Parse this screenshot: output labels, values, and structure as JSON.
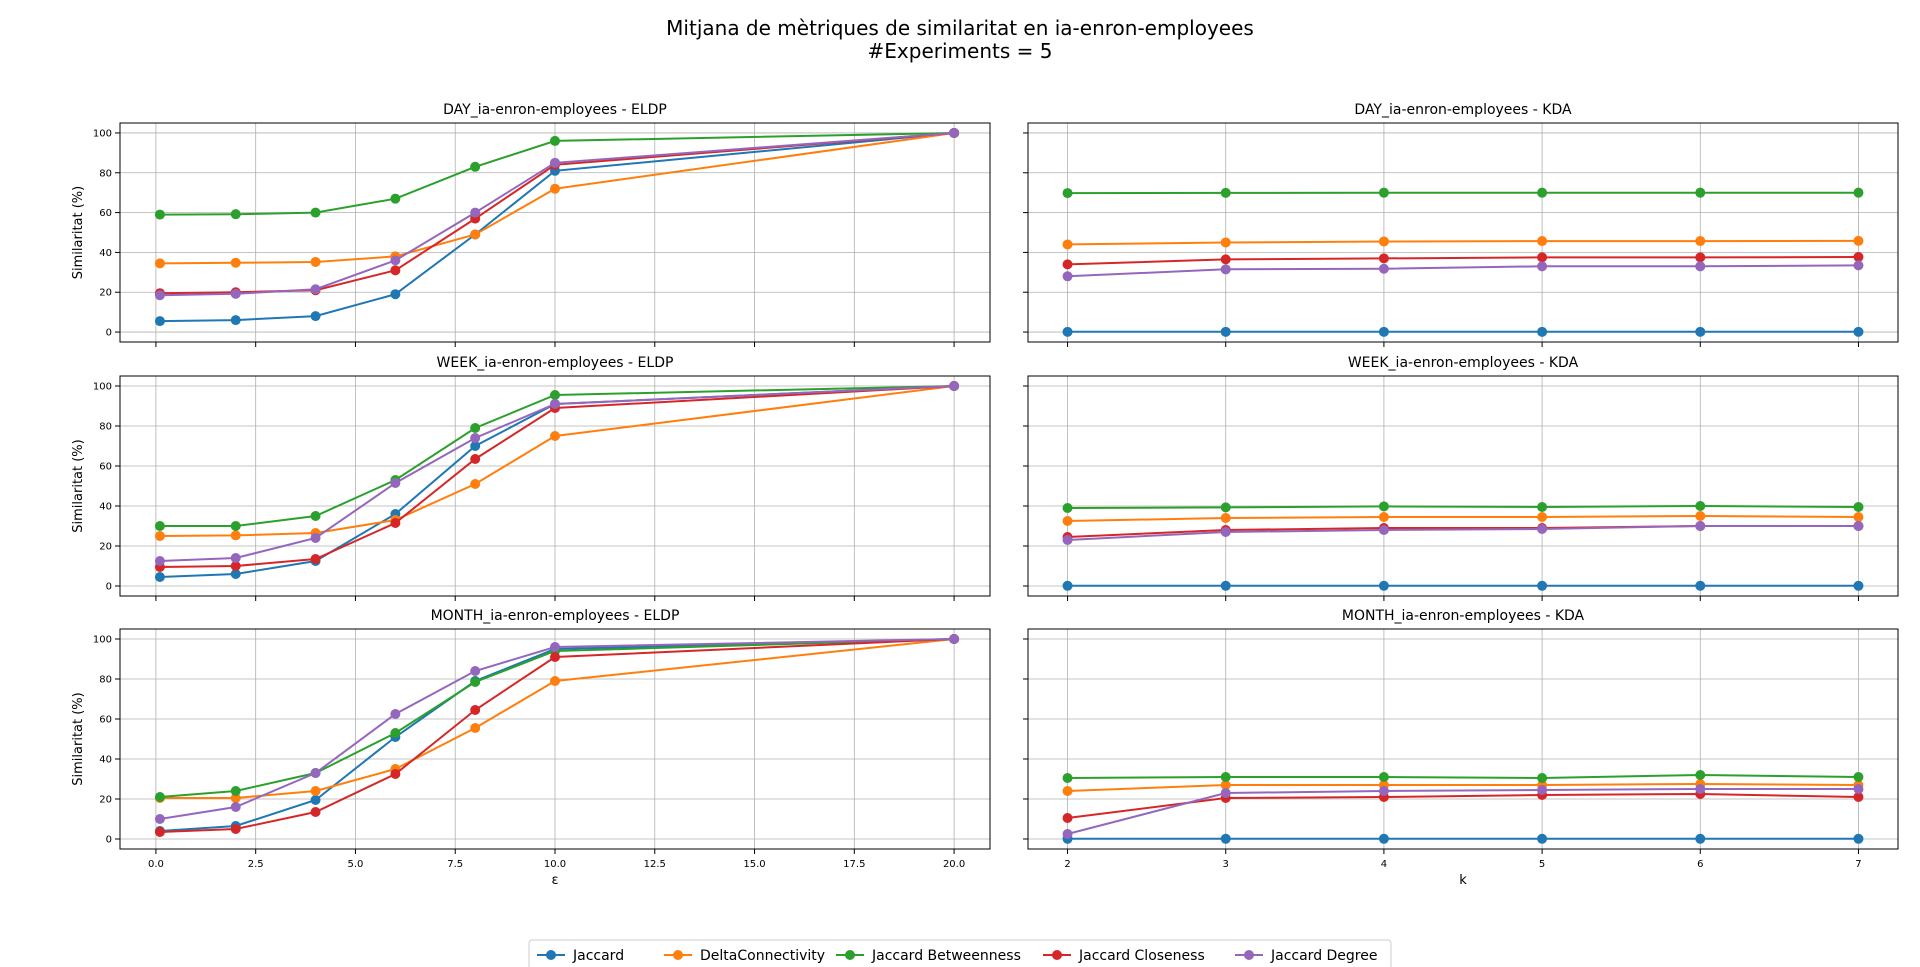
{
  "figure": {
    "title_line1": "Mitjana de mètriques de similaritat en ia-enron-employees",
    "title_line2": "#Experiments = 5"
  },
  "colors": {
    "Jaccard": "#1f77b4",
    "DeltaConnectivity": "#ff7f0e",
    "Jaccard Betweenness": "#2ca02c",
    "Jaccard Closeness": "#d62728",
    "Jaccard Degree": "#9467bd"
  },
  "legend": {
    "placement": "bottom-center",
    "entries": [
      "Jaccard",
      "DeltaConnectivity",
      "Jaccard Betweenness",
      "Jaccard Closeness",
      "Jaccard Degree"
    ]
  },
  "chart_data": [
    {
      "type": "line",
      "title": "DAY_ia-enron-employees - ELDP",
      "xlabel": "",
      "ylabel": "Similaritat (%)",
      "xlim": [
        -0.9,
        20.9
      ],
      "ylim": [
        -5,
        105
      ],
      "grid": true,
      "x": [
        0.1,
        2,
        4,
        6,
        8,
        10,
        20
      ],
      "xticks": [
        "0.0",
        "2.5",
        "5.0",
        "7.5",
        "10.0",
        "12.5",
        "15.0",
        "17.5",
        "20.0"
      ],
      "yticks": [
        "0",
        "20",
        "40",
        "60",
        "80",
        "100"
      ],
      "series": [
        {
          "name": "Jaccard",
          "values": [
            5.5,
            6,
            8,
            19,
            49,
            81,
            100
          ]
        },
        {
          "name": "DeltaConnectivity",
          "values": [
            34.5,
            34.8,
            35.2,
            38,
            49,
            72,
            100
          ]
        },
        {
          "name": "Jaccard Betweenness",
          "values": [
            59,
            59.2,
            60,
            67,
            83,
            96,
            100
          ]
        },
        {
          "name": "Jaccard Closeness",
          "values": [
            19.5,
            20,
            21,
            31,
            57,
            84,
            100
          ]
        },
        {
          "name": "Jaccard Degree",
          "values": [
            18.5,
            19.2,
            21.5,
            36,
            60,
            85,
            100
          ]
        }
      ]
    },
    {
      "type": "line",
      "title": "DAY_ia-enron-employees - KDA",
      "xlabel": "",
      "ylabel": "",
      "xlim": [
        1.75,
        7.25
      ],
      "ylim": [
        -5,
        105
      ],
      "grid": true,
      "x": [
        2,
        3,
        4,
        5,
        6,
        7
      ],
      "xticks": [
        "2",
        "3",
        "4",
        "5",
        "6",
        "7"
      ],
      "yticks": [],
      "series": [
        {
          "name": "Jaccard",
          "values": [
            0.1,
            0.1,
            0.1,
            0.1,
            0.1,
            0.1
          ]
        },
        {
          "name": "DeltaConnectivity",
          "values": [
            44,
            45,
            45.5,
            45.7,
            45.7,
            45.8
          ]
        },
        {
          "name": "Jaccard Betweenness",
          "values": [
            69.8,
            69.9,
            70,
            70,
            70,
            70
          ]
        },
        {
          "name": "Jaccard Closeness",
          "values": [
            34,
            36.5,
            37,
            37.5,
            37.5,
            37.7
          ]
        },
        {
          "name": "Jaccard Degree",
          "values": [
            28,
            31.5,
            31.8,
            33,
            33,
            33.5
          ]
        }
      ]
    },
    {
      "type": "line",
      "title": "WEEK_ia-enron-employees - ELDP",
      "xlabel": "",
      "ylabel": "Similaritat (%)",
      "xlim": [
        -0.9,
        20.9
      ],
      "ylim": [
        -5,
        105
      ],
      "grid": true,
      "x": [
        0.1,
        2,
        4,
        6,
        8,
        10,
        20
      ],
      "xticks": [
        "0.0",
        "2.5",
        "5.0",
        "7.5",
        "10.0",
        "12.5",
        "15.0",
        "17.5",
        "20.0"
      ],
      "yticks": [
        "0",
        "20",
        "40",
        "60",
        "80",
        "100"
      ],
      "series": [
        {
          "name": "Jaccard",
          "values": [
            4.5,
            6,
            12.5,
            36,
            70,
            91,
            100
          ]
        },
        {
          "name": "DeltaConnectivity",
          "values": [
            25,
            25.3,
            26.5,
            33,
            51,
            75,
            100
          ]
        },
        {
          "name": "Jaccard Betweenness",
          "values": [
            30,
            30,
            35,
            53,
            79,
            95.5,
            100
          ]
        },
        {
          "name": "Jaccard Closeness",
          "values": [
            9.5,
            10,
            13.5,
            31.5,
            63.5,
            89,
            100
          ]
        },
        {
          "name": "Jaccard Degree",
          "values": [
            12.5,
            14,
            24,
            51.5,
            74,
            91,
            100
          ]
        }
      ]
    },
    {
      "type": "line",
      "title": "WEEK_ia-enron-employees - KDA",
      "xlabel": "",
      "ylabel": "",
      "xlim": [
        1.75,
        7.25
      ],
      "ylim": [
        -5,
        105
      ],
      "grid": true,
      "x": [
        2,
        3,
        4,
        5,
        6,
        7
      ],
      "xticks": [
        "2",
        "3",
        "4",
        "5",
        "6",
        "7"
      ],
      "yticks": [],
      "series": [
        {
          "name": "Jaccard",
          "values": [
            0.1,
            0.1,
            0.1,
            0.1,
            0.1,
            0.1
          ]
        },
        {
          "name": "DeltaConnectivity",
          "values": [
            32.5,
            34,
            34.5,
            34.5,
            35,
            34.5
          ]
        },
        {
          "name": "Jaccard Betweenness",
          "values": [
            39,
            39.3,
            39.8,
            39.5,
            40,
            39.5
          ]
        },
        {
          "name": "Jaccard Closeness",
          "values": [
            24.5,
            28,
            29,
            29,
            30,
            30
          ]
        },
        {
          "name": "Jaccard Degree",
          "values": [
            23,
            27,
            28,
            28.5,
            30,
            30
          ]
        }
      ]
    },
    {
      "type": "line",
      "title": "MONTH_ia-enron-employees - ELDP",
      "xlabel": "ε",
      "ylabel": "Similaritat (%)",
      "xlim": [
        -0.9,
        20.9
      ],
      "ylim": [
        -5,
        105
      ],
      "grid": true,
      "x": [
        0.1,
        2,
        4,
        6,
        8,
        10,
        20
      ],
      "xticks": [
        "0.0",
        "2.5",
        "5.0",
        "7.5",
        "10.0",
        "12.5",
        "15.0",
        "17.5",
        "20.0"
      ],
      "yticks": [
        "0",
        "20",
        "40",
        "60",
        "80",
        "100"
      ],
      "series": [
        {
          "name": "Jaccard",
          "values": [
            4,
            6.5,
            19.5,
            51,
            79,
            95,
            100
          ]
        },
        {
          "name": "DeltaConnectivity",
          "values": [
            20.5,
            20.5,
            24,
            35,
            55.5,
            79,
            100
          ]
        },
        {
          "name": "Jaccard Betweenness",
          "values": [
            21,
            24,
            33,
            53,
            78.5,
            94,
            100
          ]
        },
        {
          "name": "Jaccard Closeness",
          "values": [
            3.5,
            5,
            13.5,
            32.5,
            64.5,
            91,
            100
          ]
        },
        {
          "name": "Jaccard Degree",
          "values": [
            10,
            16,
            33,
            62.5,
            84,
            96,
            100
          ]
        }
      ]
    },
    {
      "type": "line",
      "title": "MONTH_ia-enron-employees - KDA",
      "xlabel": "k",
      "ylabel": "",
      "xlim": [
        1.75,
        7.25
      ],
      "ylim": [
        -5,
        105
      ],
      "grid": true,
      "x": [
        2,
        3,
        4,
        5,
        6,
        7
      ],
      "xticks": [
        "2",
        "3",
        "4",
        "5",
        "6",
        "7"
      ],
      "yticks": [],
      "series": [
        {
          "name": "Jaccard",
          "values": [
            0.1,
            0.1,
            0.1,
            0.1,
            0.1,
            0.1
          ]
        },
        {
          "name": "DeltaConnectivity",
          "values": [
            24,
            27,
            27,
            27,
            27.5,
            27
          ]
        },
        {
          "name": "Jaccard Betweenness",
          "values": [
            30.5,
            31,
            31,
            30.5,
            32,
            31
          ]
        },
        {
          "name": "Jaccard Closeness",
          "values": [
            10.5,
            20.5,
            21,
            22,
            22.5,
            21
          ]
        },
        {
          "name": "Jaccard Degree",
          "values": [
            2.5,
            23,
            24,
            24.5,
            25,
            25
          ]
        }
      ]
    }
  ]
}
